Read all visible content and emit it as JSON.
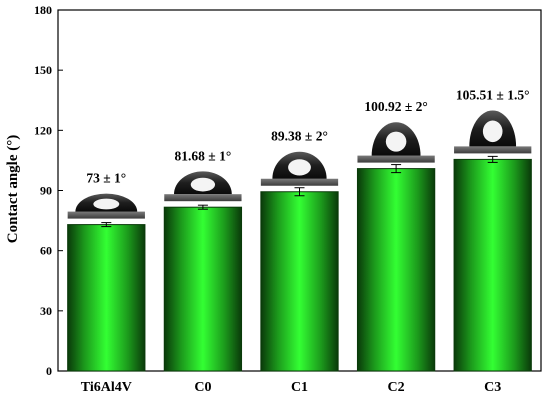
{
  "chart_data": {
    "type": "bar",
    "title": "",
    "xlabel": "",
    "ylabel": "Contact angle (°)",
    "ylim": [
      0,
      180
    ],
    "yticks": [
      0,
      30,
      60,
      90,
      120,
      150,
      180
    ],
    "grid": false,
    "legend": "none",
    "categories": [
      "Ti6Al4V",
      "C0",
      "C1",
      "C2",
      "C3"
    ],
    "values": [
      73,
      81.68,
      89.38,
      100.92,
      105.51
    ],
    "errors": [
      1,
      1,
      2,
      2,
      1.5
    ],
    "data_labels": [
      "73 ± 1°",
      "81.68 ± 1°",
      "89.38 ± 2°",
      "100.92 ± 2°",
      "105.51 ± 1.5°"
    ],
    "bar_color": "#22dd22",
    "bar_edge_color": "#0a3a0a",
    "inset_images": "water-droplet-photo"
  }
}
